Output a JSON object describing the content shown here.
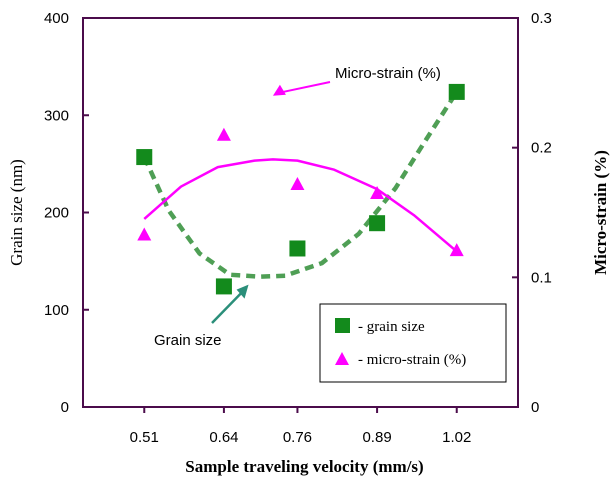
{
  "chart_data": {
    "type": "scatter",
    "categories": [
      "0.51",
      "0.64",
      "0.76",
      "0.89",
      "1.02"
    ],
    "xlabel": "Sample traveling velocity (mm/s)",
    "ylabel": "Grain size (nm)",
    "y2label": "Micro-strain (%)",
    "ylim": [
      0,
      400
    ],
    "y2lim": [
      0,
      0.3
    ],
    "yticks": [
      "0",
      "100",
      "200",
      "300",
      "400"
    ],
    "y2ticks": [
      "0",
      "0.1",
      "0.2",
      "0.3"
    ],
    "grid": false,
    "legend_position": "bottom-right",
    "colors": {
      "axis": "#4b0c4b",
      "grain": "#138a1c",
      "grain_fit": "#4f9f55",
      "strain": "#ff00ff",
      "grain_arrow": "#2b8f7a"
    },
    "series": [
      {
        "name": "grain size",
        "axis": "left",
        "marker": "square",
        "x": [
          0.51,
          0.64,
          0.76,
          0.89,
          1.02
        ],
        "values": [
          257,
          124,
          163,
          189,
          324
        ],
        "fit": {
          "style": "dashed",
          "x": [
            0.51,
            0.55,
            0.6,
            0.65,
            0.7,
            0.74,
            0.8,
            0.86,
            0.92,
            0.97,
            1.02
          ],
          "values": [
            257,
            202,
            158,
            136,
            134,
            135,
            148,
            178,
            225,
            275,
            324
          ]
        }
      },
      {
        "name": "micro-strain (%)",
        "axis": "right",
        "marker": "triangle",
        "x": [
          0.51,
          0.64,
          0.76,
          0.89,
          1.02
        ],
        "values": [
          0.133,
          0.21,
          0.172,
          0.165,
          0.121
        ],
        "fit": {
          "style": "solid",
          "x": [
            0.51,
            0.57,
            0.63,
            0.69,
            0.72,
            0.76,
            0.82,
            0.89,
            0.95,
            1.02
          ],
          "values": [
            0.145,
            0.17,
            0.185,
            0.19,
            0.191,
            0.19,
            0.183,
            0.168,
            0.148,
            0.12
          ]
        }
      }
    ],
    "annotations": [
      {
        "text": "Micro-strain (%)",
        "points_to": "micro-strain fit",
        "arrow_tip": {
          "x": 0.72,
          "y2": 0.24
        }
      },
      {
        "text": "Grain size",
        "points_to": "grain size fit",
        "arrow_tip": {
          "x": 0.69,
          "y": 134
        }
      }
    ],
    "legend": [
      {
        "label": "- grain size",
        "series": "grain size",
        "marker": "square"
      },
      {
        "label": "-  micro-strain (%)",
        "series": "micro-strain (%)",
        "marker": "triangle"
      }
    ]
  }
}
